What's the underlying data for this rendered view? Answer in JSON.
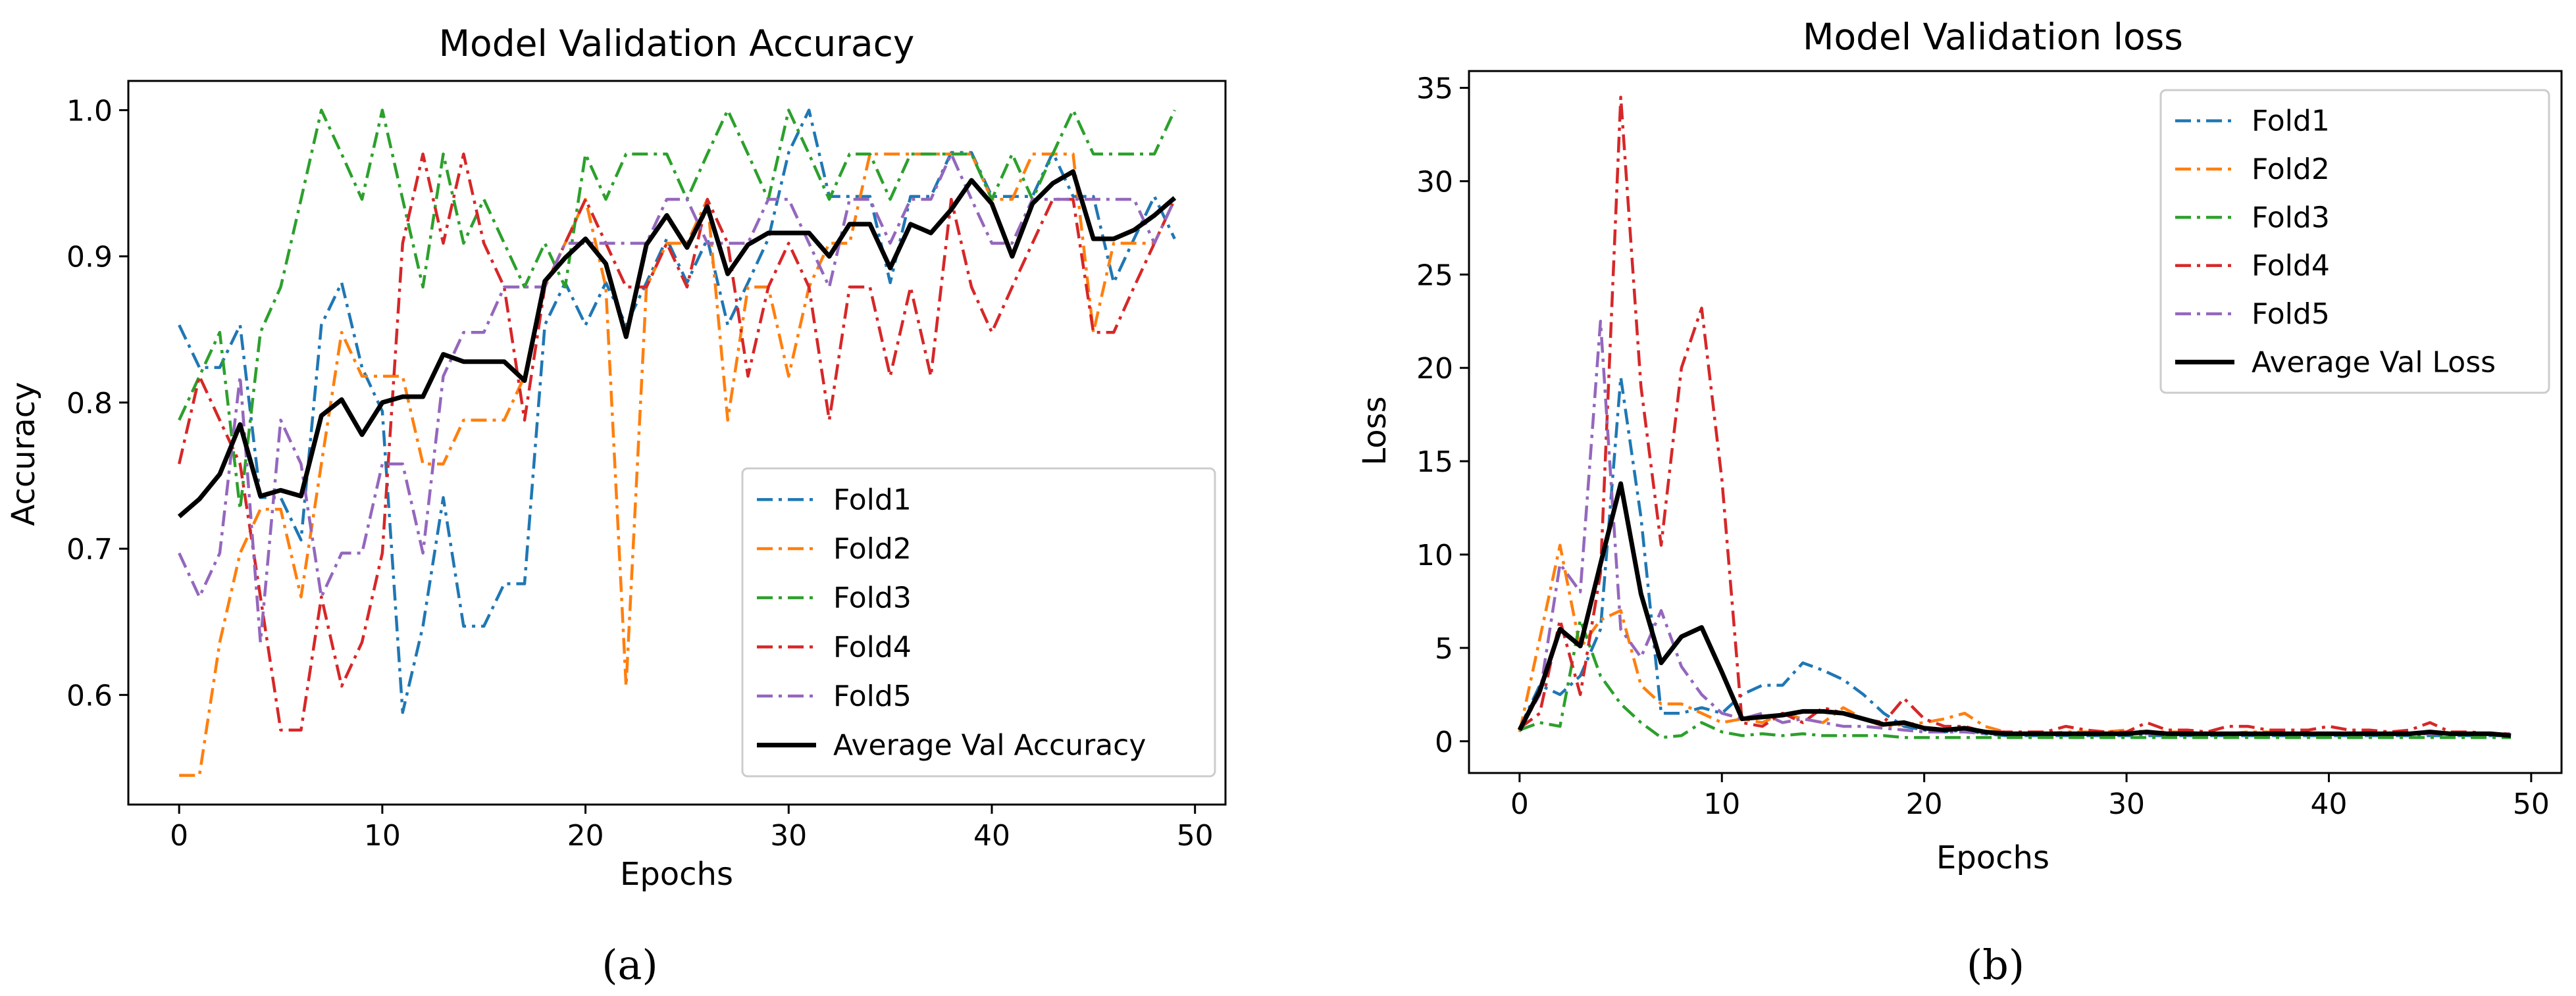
{
  "colors": {
    "Fold1": "#1f77b4",
    "Fold2": "#ff7f0e",
    "Fold3": "#2ca02c",
    "Fold4": "#d62728",
    "Fold5": "#9467bd",
    "average": "#000000"
  },
  "chart_data": [
    {
      "id": "a",
      "type": "line",
      "title": "Model Validation Accuracy",
      "xlabel": "Epochs",
      "ylabel": "Accuracy",
      "caption": "(a)",
      "xlim": [
        -2.5,
        51.5
      ],
      "ylim": [
        0.525,
        1.02
      ],
      "xticks": [
        0,
        10,
        20,
        30,
        40,
        50
      ],
      "xtick_labels": [
        "0",
        "10",
        "20",
        "30",
        "40",
        "50"
      ],
      "yticks": [
        0.6,
        0.7,
        0.8,
        0.9,
        1.0
      ],
      "ytick_labels": [
        "0.6",
        "0.7",
        "0.8",
        "0.9",
        "1.0"
      ],
      "grid": false,
      "legend_position": "lower-right",
      "legend": [
        "Fold1",
        "Fold2",
        "Fold3",
        "Fold4",
        "Fold5",
        "Average Val Accuracy"
      ],
      "x": [
        0,
        1,
        2,
        3,
        4,
        5,
        6,
        7,
        8,
        9,
        10,
        11,
        12,
        13,
        14,
        15,
        16,
        17,
        18,
        19,
        20,
        21,
        22,
        23,
        24,
        25,
        26,
        27,
        28,
        29,
        30,
        31,
        32,
        33,
        34,
        35,
        36,
        37,
        38,
        39,
        40,
        41,
        42,
        43,
        44,
        45,
        46,
        47,
        48,
        49
      ],
      "series": [
        {
          "name": "Fold1",
          "style": "dashdot",
          "values": [
            0.853,
            0.824,
            0.824,
            0.853,
            0.735,
            0.735,
            0.706,
            0.853,
            0.882,
            0.824,
            0.794,
            0.588,
            0.647,
            0.735,
            0.647,
            0.647,
            0.676,
            0.676,
            0.853,
            0.882,
            0.853,
            0.882,
            0.853,
            0.882,
            0.912,
            0.882,
            0.912,
            0.853,
            0.882,
            0.912,
            0.971,
            1.0,
            0.941,
            0.941,
            0.941,
            0.882,
            0.941,
            0.941,
            0.971,
            0.971,
            0.941,
            0.941,
            0.941,
            0.971,
            0.941,
            0.941,
            0.882,
            0.912,
            0.941,
            0.912
          ]
        },
        {
          "name": "Fold2",
          "style": "dashdot",
          "values": [
            0.545,
            0.545,
            0.636,
            0.697,
            0.727,
            0.727,
            0.667,
            0.758,
            0.848,
            0.818,
            0.818,
            0.818,
            0.758,
            0.758,
            0.788,
            0.788,
            0.788,
            0.818,
            0.879,
            0.909,
            0.939,
            0.879,
            0.606,
            0.879,
            0.909,
            0.909,
            0.939,
            0.788,
            0.879,
            0.879,
            0.818,
            0.879,
            0.909,
            0.909,
            0.97,
            0.97,
            0.97,
            0.97,
            0.97,
            0.97,
            0.939,
            0.939,
            0.97,
            0.97,
            0.97,
            0.848,
            0.909,
            0.909,
            0.909,
            0.939
          ]
        },
        {
          "name": "Fold3",
          "style": "dashdot",
          "values": [
            0.788,
            0.818,
            0.848,
            0.727,
            0.848,
            0.879,
            0.939,
            1.0,
            0.97,
            0.939,
            1.0,
            0.939,
            0.879,
            0.97,
            0.909,
            0.939,
            0.909,
            0.879,
            0.909,
            0.879,
            0.97,
            0.939,
            0.97,
            0.97,
            0.97,
            0.939,
            0.97,
            1.0,
            0.97,
            0.939,
            1.0,
            0.97,
            0.939,
            0.97,
            0.97,
            0.939,
            0.97,
            0.97,
            0.97,
            0.97,
            0.939,
            0.97,
            0.939,
            0.97,
            1.0,
            0.97,
            0.97,
            0.97,
            0.97,
            1.0
          ]
        },
        {
          "name": "Fold4",
          "style": "dashdot",
          "values": [
            0.758,
            0.818,
            0.788,
            0.758,
            0.667,
            0.576,
            0.576,
            0.667,
            0.606,
            0.636,
            0.697,
            0.909,
            0.97,
            0.909,
            0.97,
            0.909,
            0.879,
            0.788,
            0.879,
            0.909,
            0.939,
            0.909,
            0.879,
            0.879,
            0.909,
            0.879,
            0.939,
            0.909,
            0.818,
            0.879,
            0.909,
            0.879,
            0.788,
            0.879,
            0.879,
            0.818,
            0.879,
            0.818,
            0.939,
            0.879,
            0.848,
            0.879,
            0.909,
            0.939,
            0.939,
            0.848,
            0.848,
            0.879,
            0.909,
            0.939
          ]
        },
        {
          "name": "Fold5",
          "style": "dashdot",
          "values": [
            0.697,
            0.667,
            0.697,
            0.818,
            0.636,
            0.788,
            0.758,
            0.667,
            0.697,
            0.697,
            0.758,
            0.758,
            0.697,
            0.818,
            0.848,
            0.848,
            0.879,
            0.879,
            0.879,
            0.909,
            0.909,
            0.909,
            0.909,
            0.909,
            0.939,
            0.939,
            0.909,
            0.909,
            0.909,
            0.939,
            0.939,
            0.909,
            0.879,
            0.939,
            0.939,
            0.909,
            0.939,
            0.939,
            0.97,
            0.939,
            0.909,
            0.909,
            0.939,
            0.939,
            0.939,
            0.939,
            0.939,
            0.939,
            0.909,
            0.939
          ]
        },
        {
          "name": "Average Val Accuracy",
          "style": "solid",
          "values": [
            0.722,
            0.734,
            0.751,
            0.785,
            0.736,
            0.74,
            0.736,
            0.791,
            0.802,
            0.778,
            0.8,
            0.804,
            0.804,
            0.833,
            0.828,
            0.828,
            0.828,
            0.815,
            0.883,
            0.899,
            0.912,
            0.895,
            0.845,
            0.908,
            0.928,
            0.906,
            0.934,
            0.888,
            0.908,
            0.916,
            0.916,
            0.916,
            0.9,
            0.922,
            0.922,
            0.892,
            0.922,
            0.916,
            0.932,
            0.952,
            0.936,
            0.9,
            0.936,
            0.95,
            0.958,
            0.912,
            0.912,
            0.918,
            0.928,
            0.94
          ]
        }
      ]
    },
    {
      "id": "b",
      "type": "line",
      "title": "Model Validation loss",
      "xlabel": "Epochs",
      "ylabel": "Loss",
      "caption": "(b)",
      "xlim": [
        -2.5,
        51.5
      ],
      "ylim": [
        -1.7,
        35.9
      ],
      "xticks": [
        0,
        10,
        20,
        30,
        40,
        50
      ],
      "xtick_labels": [
        "0",
        "10",
        "20",
        "30",
        "40",
        "50"
      ],
      "yticks": [
        0,
        5,
        10,
        15,
        20,
        25,
        30,
        35
      ],
      "ytick_labels": [
        "0",
        "5",
        "10",
        "15",
        "20",
        "25",
        "30",
        "35"
      ],
      "grid": false,
      "legend_position": "upper-right",
      "legend": [
        "Fold1",
        "Fold2",
        "Fold3",
        "Fold4",
        "Fold5",
        "Average Val Loss"
      ],
      "x": [
        0,
        1,
        2,
        3,
        4,
        5,
        6,
        7,
        8,
        9,
        10,
        11,
        12,
        13,
        14,
        15,
        16,
        17,
        18,
        19,
        20,
        21,
        22,
        23,
        24,
        25,
        26,
        27,
        28,
        29,
        30,
        31,
        32,
        33,
        34,
        35,
        36,
        37,
        38,
        39,
        40,
        41,
        42,
        43,
        44,
        45,
        46,
        47,
        48,
        49
      ],
      "series": [
        {
          "name": "Fold1",
          "style": "dashdot",
          "values": [
            0.7,
            3.0,
            2.5,
            3.5,
            6.0,
            19.5,
            12.0,
            1.5,
            1.5,
            1.8,
            1.5,
            2.5,
            3.0,
            3.0,
            4.2,
            3.8,
            3.3,
            2.5,
            1.5,
            0.8,
            0.6,
            0.5,
            0.6,
            0.4,
            0.3,
            0.3,
            0.3,
            0.3,
            0.3,
            0.3,
            0.3,
            0.3,
            0.3,
            0.3,
            0.3,
            0.3,
            0.3,
            0.3,
            0.3,
            0.3,
            0.3,
            0.3,
            0.3,
            0.3,
            0.3,
            0.3,
            0.3,
            0.3,
            0.3,
            0.3
          ]
        },
        {
          "name": "Fold2",
          "style": "dashdot",
          "values": [
            0.5,
            5.5,
            10.5,
            5.0,
            6.5,
            7.0,
            3.0,
            2.0,
            2.0,
            1.5,
            1.0,
            1.2,
            1.0,
            1.5,
            1.2,
            1.0,
            1.8,
            1.2,
            0.8,
            0.9,
            1.0,
            1.2,
            1.5,
            0.8,
            0.5,
            0.4,
            0.4,
            0.5,
            0.5,
            0.5,
            0.6,
            0.5,
            0.5,
            0.5,
            0.4,
            0.4,
            0.5,
            0.5,
            0.4,
            0.4,
            0.4,
            0.4,
            0.4,
            0.4,
            0.4,
            0.4,
            0.4,
            0.4,
            0.4,
            0.3
          ]
        },
        {
          "name": "Fold3",
          "style": "dashdot",
          "values": [
            0.6,
            1.0,
            0.8,
            6.5,
            3.5,
            2.0,
            1.0,
            0.2,
            0.3,
            1.0,
            0.5,
            0.3,
            0.4,
            0.3,
            0.4,
            0.3,
            0.3,
            0.3,
            0.3,
            0.2,
            0.2,
            0.2,
            0.2,
            0.2,
            0.2,
            0.2,
            0.2,
            0.2,
            0.2,
            0.2,
            0.2,
            0.2,
            0.2,
            0.2,
            0.2,
            0.2,
            0.2,
            0.2,
            0.2,
            0.2,
            0.2,
            0.2,
            0.2,
            0.2,
            0.2,
            0.2,
            0.2,
            0.2,
            0.2,
            0.2
          ]
        },
        {
          "name": "Fold4",
          "style": "dashdot",
          "values": [
            0.7,
            1.5,
            6.5,
            2.5,
            9.0,
            34.5,
            19.0,
            10.5,
            20.0,
            23.2,
            14.0,
            1.0,
            0.8,
            1.5,
            1.0,
            1.8,
            1.5,
            1.2,
            1.0,
            2.3,
            1.2,
            0.8,
            0.8,
            0.5,
            0.5,
            0.5,
            0.5,
            0.8,
            0.6,
            0.5,
            0.5,
            1.0,
            0.6,
            0.6,
            0.5,
            0.8,
            0.8,
            0.6,
            0.6,
            0.6,
            0.8,
            0.6,
            0.6,
            0.5,
            0.6,
            1.0,
            0.5,
            0.5,
            0.4,
            0.4
          ]
        },
        {
          "name": "Fold5",
          "style": "dashdot",
          "values": [
            0.6,
            2.5,
            9.5,
            8.0,
            22.5,
            6.0,
            4.5,
            7.0,
            4.0,
            2.5,
            1.5,
            1.2,
            1.5,
            1.0,
            1.2,
            1.0,
            0.8,
            0.8,
            0.7,
            0.6,
            0.5,
            0.5,
            0.5,
            0.4,
            0.4,
            0.4,
            0.4,
            0.4,
            0.4,
            0.4,
            0.4,
            0.4,
            0.4,
            0.4,
            0.4,
            0.4,
            0.4,
            0.4,
            0.4,
            0.4,
            0.4,
            0.4,
            0.4,
            0.4,
            0.4,
            0.4,
            0.4,
            0.4,
            0.4,
            0.4
          ]
        },
        {
          "name": "Average Val Loss",
          "style": "solid",
          "values": [
            0.6,
            2.7,
            6.0,
            5.1,
            9.5,
            13.8,
            7.9,
            4.2,
            5.6,
            6.1,
            3.7,
            1.2,
            1.3,
            1.4,
            1.6,
            1.6,
            1.5,
            1.2,
            0.9,
            1.0,
            0.7,
            0.6,
            0.7,
            0.5,
            0.4,
            0.4,
            0.4,
            0.4,
            0.4,
            0.4,
            0.4,
            0.5,
            0.4,
            0.4,
            0.4,
            0.4,
            0.4,
            0.4,
            0.4,
            0.4,
            0.4,
            0.4,
            0.4,
            0.4,
            0.4,
            0.5,
            0.4,
            0.4,
            0.4,
            0.3
          ]
        }
      ]
    }
  ]
}
